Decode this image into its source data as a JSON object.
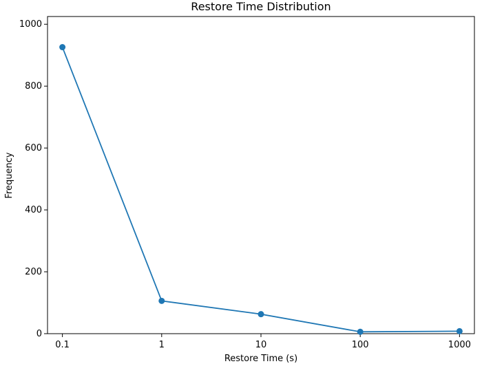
{
  "chart_data": {
    "type": "line",
    "title": "Restore Time Distribution",
    "xlabel": "Restore Time (s)",
    "ylabel": "Frequency",
    "x_scale": "log",
    "x": [
      0.1,
      1,
      10,
      100,
      1000
    ],
    "x_tick_labels": [
      "0.1",
      "1",
      "10",
      "100",
      "1000"
    ],
    "series": [
      {
        "values": [
          926,
          106,
          63,
          6,
          8
        ],
        "color": "#1f77b4",
        "marker": "circle"
      }
    ],
    "y_ticks": [
      0,
      200,
      400,
      600,
      800,
      1000
    ],
    "y_tick_labels": [
      "0",
      "200",
      "400",
      "600",
      "800",
      "1000"
    ],
    "ylim": [
      0,
      1025
    ],
    "xlim": [
      0.0708,
      1413
    ],
    "grid": false,
    "legend": "none"
  }
}
